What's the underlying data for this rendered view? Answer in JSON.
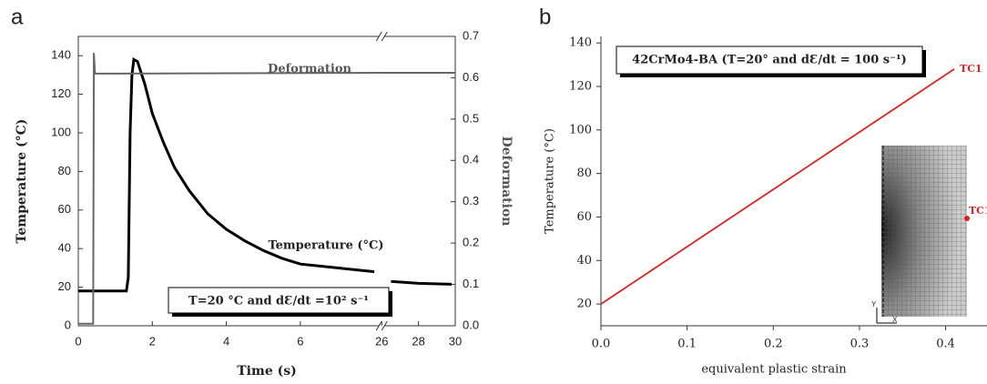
{
  "chart_data": [
    {
      "type": "line",
      "panel": "a",
      "xlabel": "Time (s)",
      "ylabel": "Temperature (°C)",
      "y2label": "Deformation",
      "xlim": [
        0,
        30
      ],
      "x_break": [
        8.2,
        26
      ],
      "xticks": [
        0,
        2,
        4,
        6,
        26,
        28,
        30
      ],
      "ylim": [
        0,
        150
      ],
      "yticks": [
        0,
        20,
        40,
        60,
        80,
        100,
        120,
        140
      ],
      "y2lim": [
        0,
        0.7
      ],
      "y2ticks": [
        {
          "value": 0,
          "label": "0.0"
        },
        0.1,
        0.2,
        0.3,
        0.4,
        0.5,
        0.6,
        0.7
      ],
      "series": [
        {
          "name": "Temperature (°C)",
          "color": "#000000",
          "x": [
            0,
            1.3,
            1.35,
            1.4,
            1.45,
            1.5,
            1.6,
            1.8,
            2,
            2.3,
            2.6,
            3,
            3.5,
            4,
            4.5,
            5,
            5.5,
            6,
            7,
            8,
            null,
            26.5,
            28,
            29.8
          ],
          "values": [
            18,
            18,
            25,
            100,
            130,
            138,
            137,
            125,
            110,
            95,
            82,
            70,
            58,
            50,
            44,
            39,
            35,
            32,
            30,
            28,
            null,
            23,
            22,
            21.5
          ]
        },
        {
          "name": "Deformation",
          "color": "#666666",
          "axis": "y2",
          "x": [
            0,
            0.4,
            0.42,
            0.45,
            0.5,
            8.2,
            26,
            30
          ],
          "values": [
            0.005,
            0.005,
            0.66,
            0.61,
            0.61,
            0.612,
            0.612,
            0.612
          ]
        }
      ],
      "annotation": "T=20 °C and dƐ/dt =10² s⁻¹"
    },
    {
      "type": "line",
      "panel": "b",
      "title": "42CrMo4-BA (T=20° and dƐ/dt = 100 s⁻¹)",
      "xlabel": "equivalent plastic strain",
      "ylabel": "Temperature (°C)",
      "xlim": [
        0,
        0.448
      ],
      "xticks": [
        {
          "value": 0,
          "label": "0.0"
        },
        0.1,
        0.2,
        0.3,
        0.4
      ],
      "ylim": [
        10,
        143
      ],
      "yticks": [
        20,
        40,
        60,
        80,
        100,
        120,
        140
      ],
      "series": [
        {
          "name": "TC1",
          "color": "#e02020",
          "x": [
            0,
            0.41
          ],
          "values": [
            20,
            128
          ]
        }
      ],
      "inset_axes": [
        "Y",
        "X"
      ]
    }
  ]
}
